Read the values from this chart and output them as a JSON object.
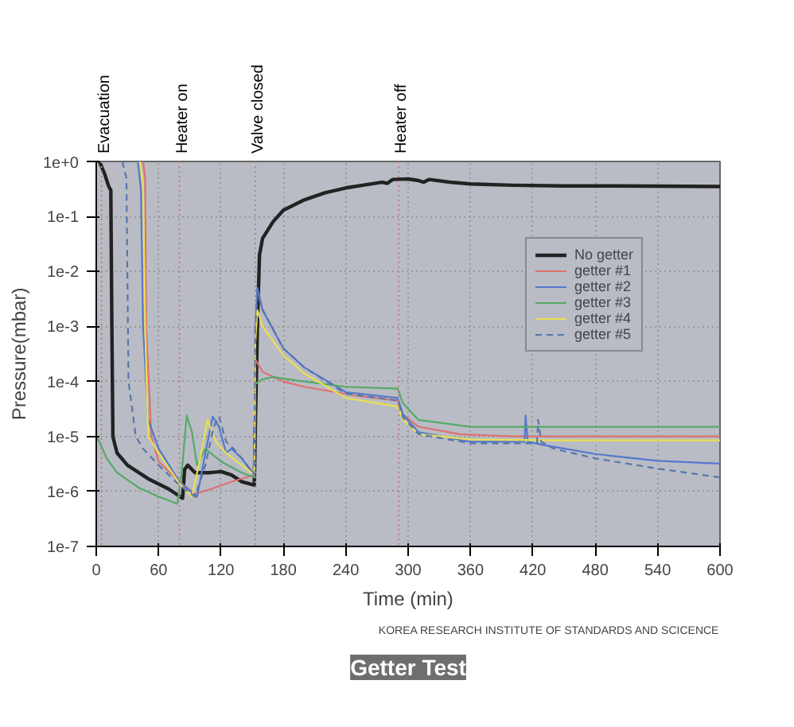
{
  "chart_data": {
    "type": "line",
    "title": "Getter Test",
    "xlabel": "Time (min)",
    "ylabel": "Pressure(mbar)",
    "annotations": [
      "KOREA RESEARCH INSTITUTE OF STANDARDS AND SCICENCE"
    ],
    "log": "y",
    "grid": true,
    "legend": "top right",
    "xlim": [
      0,
      600
    ],
    "xticks": [
      0,
      60,
      120,
      180,
      240,
      300,
      360,
      420,
      480,
      540,
      600
    ],
    "ylim": [
      1e-07,
      1
    ],
    "yticks": [
      {
        "value": 1e-07,
        "label": "1e-7"
      },
      {
        "value": 1e-06,
        "label": "1e-6"
      },
      {
        "value": 1e-05,
        "label": "1e-5"
      },
      {
        "value": 0.0001,
        "label": "1e-4"
      },
      {
        "value": 0.001,
        "label": "1e-3"
      },
      {
        "value": 0.01,
        "label": "1e-2"
      },
      {
        "value": 0.1,
        "label": "1e-1"
      },
      {
        "value": 1,
        "label": "1e+0"
      }
    ],
    "ref_lines": [
      {
        "axis": "x",
        "value": 5,
        "label": "Evacuation",
        "color": "#c08080",
        "line_style": "dotted"
      },
      {
        "axis": "x",
        "value": 80,
        "label": "Heater on",
        "color": "#c08080",
        "line_style": "dotted"
      },
      {
        "axis": "x",
        "value": 153,
        "label": "Valve closed",
        "color": "#c08080",
        "line_style": "dotted"
      },
      {
        "axis": "x",
        "value": 291,
        "label": "Heater off",
        "color": "#c08080",
        "line_style": "dotted"
      }
    ],
    "series": [
      {
        "name": "No getter",
        "color": "#222222",
        "line_style": "solid",
        "x": [
          3,
          8,
          12,
          14,
          15,
          16,
          18,
          20,
          30,
          50,
          70,
          83,
          85,
          88,
          95,
          110,
          120,
          130,
          140,
          152,
          153,
          155,
          157,
          160,
          170,
          180,
          200,
          220,
          240,
          260,
          275,
          280,
          285,
          300,
          310,
          315,
          320,
          340,
          360,
          400,
          450,
          500,
          600
        ],
        "values": [
          1,
          0.6,
          0.35,
          0.3,
          0.001,
          1e-05,
          7e-06,
          5e-06,
          3e-06,
          1.7e-06,
          1.1e-06,
          7.5e-07,
          2.5e-06,
          3e-06,
          2.2e-06,
          2.2e-06,
          2.3e-06,
          2e-06,
          1.5e-06,
          1.3e-06,
          1.5e-05,
          0.001,
          0.02,
          0.04,
          0.08,
          0.13,
          0.2,
          0.27,
          0.33,
          0.38,
          0.42,
          0.4,
          0.47,
          0.48,
          0.45,
          0.42,
          0.47,
          0.42,
          0.39,
          0.37,
          0.36,
          0.36,
          0.35
        ]
      },
      {
        "name": "getter #1",
        "color": "#e07070",
        "line_style": "solid",
        "x": [
          45,
          47,
          48,
          53,
          60,
          80,
          95,
          110,
          130,
          152,
          153,
          160,
          180,
          200,
          250,
          290,
          295,
          310,
          350,
          400,
          600
        ],
        "values": [
          1,
          0.5,
          0.001,
          1e-05,
          3.5e-06,
          1.5e-06,
          9e-07,
          1.1e-06,
          1.5e-06,
          2e-06,
          0.00025,
          0.00015,
          0.0001,
          8e-05,
          5.5e-05,
          4.5e-05,
          2.5e-05,
          1.5e-05,
          1.1e-05,
          1e-05,
          1e-05
        ]
      },
      {
        "name": "getter #2",
        "color": "#5577cc",
        "line_style": "solid",
        "x": [
          40,
          43,
          45,
          50,
          60,
          80,
          97,
          105,
          112,
          118,
          125,
          130,
          140,
          152,
          153,
          155,
          160,
          180,
          200,
          240,
          290,
          295,
          310,
          360,
          412,
          413,
          415,
          430,
          480,
          540,
          600
        ],
        "values": [
          1,
          0.3,
          0.001,
          2e-05,
          6e-06,
          1.5e-06,
          8e-07,
          5e-06,
          2.3e-05,
          1.5e-05,
          5e-06,
          6e-06,
          4e-06,
          2e-06,
          0.001,
          0.005,
          0.002,
          0.0004,
          0.00018,
          6.4e-05,
          5e-05,
          2.5e-05,
          1.2e-05,
          8e-06,
          8e-06,
          2.4e-05,
          8e-06,
          7e-06,
          4.8e-06,
          3.6e-06,
          3.2e-06
        ]
      },
      {
        "name": "getter #3",
        "color": "#55aa66",
        "line_style": "solid",
        "x": [
          0,
          3,
          10,
          20,
          40,
          60,
          78,
          82,
          87,
          92,
          97,
          105,
          120,
          140,
          152,
          153,
          160,
          170,
          200,
          240,
          290,
          295,
          310,
          360,
          450,
          600
        ],
        "values": [
          1e-05,
          8e-06,
          4e-06,
          2.2e-06,
          1.2e-06,
          8e-07,
          6e-07,
          2e-06,
          2.4e-05,
          1.2e-05,
          3e-06,
          6e-06,
          3.5e-06,
          2.2e-06,
          1.8e-06,
          9e-05,
          0.00011,
          0.00012,
          0.0001,
          8e-05,
          7.4e-05,
          4e-05,
          2e-05,
          1.5e-05,
          1.5e-05,
          1.5e-05
        ]
      },
      {
        "name": "getter #4",
        "color": "#e8e050",
        "line_style": "solid",
        "x": [
          42,
          45,
          47,
          50,
          60,
          80,
          92,
          100,
          107,
          115,
          125,
          140,
          152,
          153,
          155,
          160,
          180,
          200,
          240,
          290,
          295,
          310,
          360,
          450,
          600
        ],
        "values": [
          1,
          0.4,
          0.001,
          1e-05,
          5e-06,
          1.4e-06,
          8e-07,
          4e-06,
          2e-05,
          8e-06,
          5e-06,
          3e-06,
          2e-06,
          0.0005,
          0.002,
          0.001,
          0.0003,
          0.00014,
          5e-05,
          3.5e-05,
          2e-05,
          1.1e-05,
          8.8e-06,
          8.5e-06,
          8.5e-06
        ]
      },
      {
        "name": "getter #5",
        "color": "#5577aa",
        "line_style": "dashed",
        "x": [
          25,
          29,
          31,
          38,
          45,
          60,
          80,
          95,
          105,
          113,
          118,
          125,
          132,
          140,
          152,
          153,
          155,
          160,
          180,
          200,
          240,
          290,
          295,
          310,
          360,
          424,
          425,
          428,
          440,
          480,
          540,
          600
        ],
        "values": [
          1,
          0.5,
          0.0001,
          1e-05,
          6e-06,
          3e-06,
          1.3e-06,
          8e-07,
          3e-06,
          1.5e-05,
          2.3e-05,
          8e-06,
          6e-06,
          4e-06,
          2e-06,
          0.001,
          0.004,
          0.002,
          0.0004,
          0.00018,
          6e-05,
          4.5e-05,
          2.2e-05,
          1.1e-05,
          7.5e-06,
          7.5e-06,
          2e-05,
          8e-06,
          6e-06,
          4e-06,
          2.6e-06,
          1.8e-06
        ]
      }
    ]
  }
}
